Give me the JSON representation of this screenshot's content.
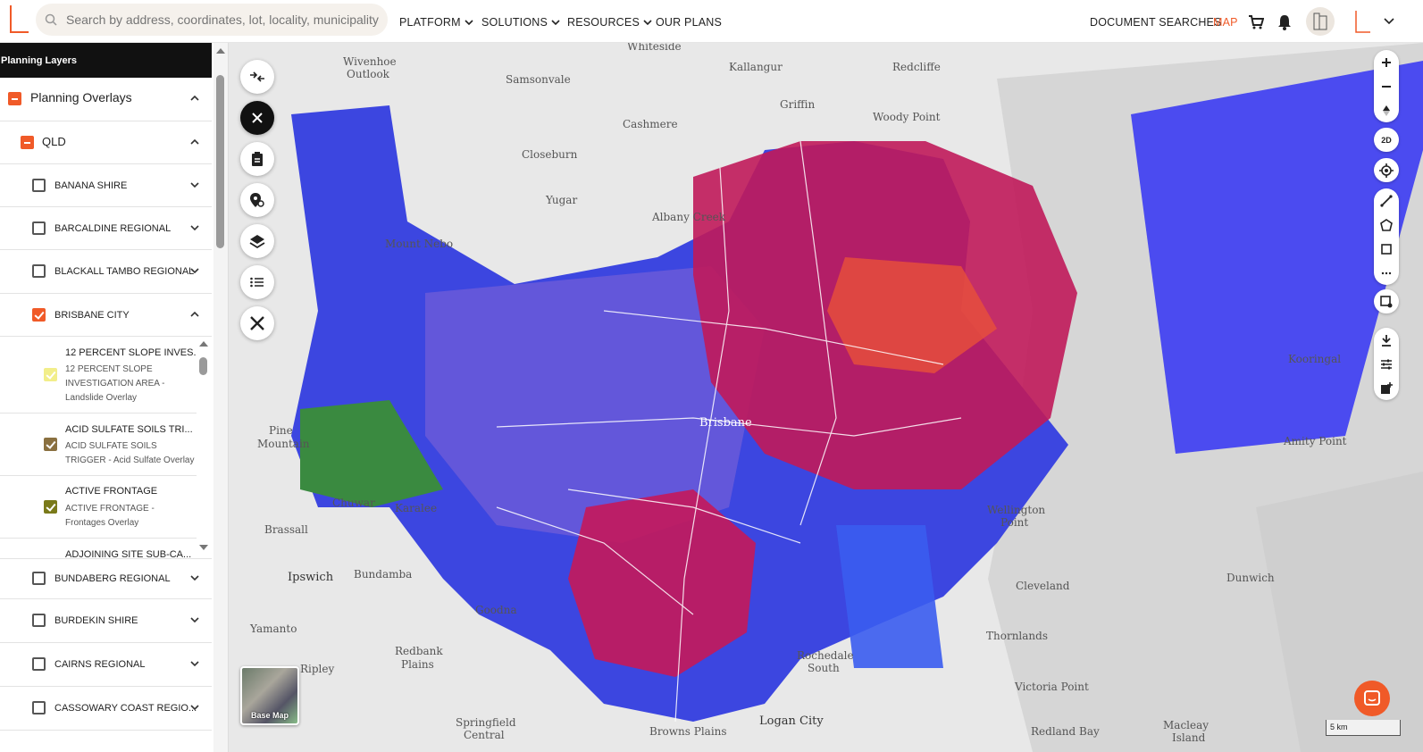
{
  "topbar": {
    "search_placeholder": "Search by address, coordinates, lot, locality, municipality o...",
    "nav": [
      "PLATFORM",
      "SOLUTIONS",
      "RESOURCES"
    ],
    "our_plans": "OUR PLANS",
    "document_searches": "DOCUMENT SEARCHES",
    "map": "MAP",
    "brand_color": "#f05a28"
  },
  "sidebar": {
    "title": "Planning Layers",
    "overlays_label": "Planning Overlays",
    "state_label": "QLD",
    "councils_top": [
      "BANANA SHIRE",
      "BARCALDINE REGIONAL",
      "BLACKALL TAMBO REGIONAL"
    ],
    "brisbane_label": "BRISBANE CITY",
    "layers": [
      {
        "title": "12 PERCENT SLOPE INVES...",
        "desc": "12 PERCENT SLOPE INVESTIGATION AREA - Landslide Overlay",
        "color": "#f2ee8a"
      },
      {
        "title": "ACID SULFATE SOILS TRI...",
        "desc": "ACID SULFATE SOILS TRIGGER - Acid Sulfate Overlay",
        "color": "#8a7040"
      },
      {
        "title": "ACTIVE FRONTAGE",
        "desc": "ACTIVE FRONTAGE - Frontages Overlay",
        "color": "#7a7a1a"
      },
      {
        "title": "ADJOINING SITE SUB-CA...",
        "desc": "",
        "color": "#999999"
      }
    ],
    "councils_bottom": [
      "BUNDABERG REGIONAL",
      "BURDEKIN SHIRE",
      "CAIRNS REGIONAL",
      "CASSOWARY COAST REGIO..."
    ]
  },
  "map": {
    "places": [
      {
        "name": "Whiteside"
      },
      {
        "name": "Wivenhoe"
      },
      {
        "name": "Outlook"
      },
      {
        "name": "Kallangur"
      },
      {
        "name": "Redcliffe"
      },
      {
        "name": "Samsonvale"
      },
      {
        "name": "Griffin"
      },
      {
        "name": "Cashmere"
      },
      {
        "name": "Woody Point"
      },
      {
        "name": "Closeburn"
      },
      {
        "name": "Yugar"
      },
      {
        "name": "Albany Creek"
      },
      {
        "name": "Mount Nebo"
      },
      {
        "name": "Pine"
      },
      {
        "name": "Mountain"
      },
      {
        "name": "Brassall"
      },
      {
        "name": "Karalee"
      },
      {
        "name": "Chuwar"
      },
      {
        "name": "Ipswich"
      },
      {
        "name": "Bundamba"
      },
      {
        "name": "Goodna"
      },
      {
        "name": "Yamanto"
      },
      {
        "name": "Ripley"
      },
      {
        "name": "Redbank"
      },
      {
        "name": "Plains"
      },
      {
        "name": "Springfield"
      },
      {
        "name": "Central"
      },
      {
        "name": "Browns Plains"
      },
      {
        "name": "Logan City"
      },
      {
        "name": "Rochedale"
      },
      {
        "name": "South"
      },
      {
        "name": "Wellington"
      },
      {
        "name": "Point"
      },
      {
        "name": "Cleveland"
      },
      {
        "name": "Thornlands"
      },
      {
        "name": "Victoria Point"
      },
      {
        "name": "Redland Bay"
      },
      {
        "name": "Macleay"
      },
      {
        "name": "Island"
      },
      {
        "name": "Dunwich"
      },
      {
        "name": "Amity Point"
      },
      {
        "name": "Kooringal"
      },
      {
        "name": "Brisbane"
      }
    ],
    "basemap_label": "Base Map",
    "scale_label": "5 km",
    "zoom_2d_label": "2D"
  }
}
